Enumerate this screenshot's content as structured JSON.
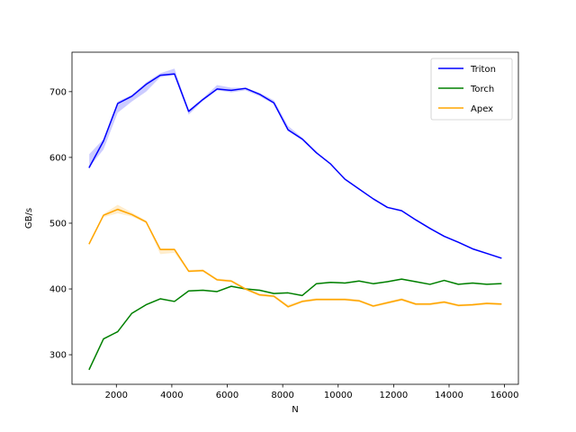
{
  "chart_data": {
    "type": "line",
    "title": "",
    "xlabel": "N",
    "ylabel": "GB/s",
    "xlim": [
      400,
      16500
    ],
    "ylim": [
      255,
      760
    ],
    "xticks": [
      2000,
      4000,
      6000,
      8000,
      10000,
      12000,
      14000,
      16000
    ],
    "yticks": [
      300,
      400,
      500,
      600,
      700
    ],
    "grid": false,
    "legend_position": "top-right",
    "x": [
      1024,
      1536,
      2048,
      2560,
      3072,
      3584,
      4096,
      4608,
      5120,
      5632,
      6144,
      6656,
      7168,
      7680,
      8192,
      8704,
      9216,
      9728,
      10240,
      10752,
      11264,
      11776,
      12288,
      12800,
      13312,
      13824,
      14336,
      14848,
      15360,
      15872
    ],
    "series": [
      {
        "name": "Triton",
        "color": "#0000ff",
        "values": [
          585,
          625,
          682,
          693,
          711,
          725,
          727,
          670,
          688,
          704,
          702,
          705,
          696,
          683,
          642,
          628,
          607,
          590,
          567,
          552,
          537,
          524,
          519,
          505,
          492,
          480,
          471,
          461,
          454,
          447
        ],
        "band_low": [
          585,
          612,
          668,
          685,
          700,
          722,
          725,
          665,
          686,
          702,
          699,
          702,
          693,
          681,
          640,
          626,
          606,
          589,
          566,
          551,
          536,
          523,
          518,
          504,
          491,
          479,
          470,
          460,
          453,
          446
        ],
        "band_high": [
          605,
          628,
          685,
          695,
          714,
          728,
          735,
          672,
          690,
          710,
          706,
          706,
          698,
          687,
          648,
          630,
          609,
          591,
          568,
          553,
          538,
          525,
          520,
          506,
          493,
          481,
          472,
          462,
          455,
          448
        ]
      },
      {
        "name": "Torch",
        "color": "#008000",
        "values": [
          278,
          324,
          335,
          363,
          376,
          385,
          381,
          397,
          398,
          396,
          404,
          400,
          398,
          393,
          394,
          390,
          408,
          410,
          409,
          412,
          408,
          411,
          415,
          411,
          407,
          413,
          407,
          409,
          407,
          408
        ],
        "band_low": [
          277,
          323,
          334,
          362,
          375,
          384,
          380,
          396,
          397,
          395,
          403,
          399,
          397,
          392,
          393,
          389,
          407,
          409,
          408,
          411,
          407,
          410,
          414,
          410,
          406,
          412,
          406,
          408,
          406,
          407
        ],
        "band_high": [
          279,
          325,
          336,
          364,
          377,
          386,
          382,
          398,
          399,
          397,
          405,
          401,
          399,
          394,
          395,
          391,
          409,
          411,
          410,
          413,
          409,
          412,
          416,
          412,
          408,
          414,
          408,
          410,
          408,
          409
        ]
      },
      {
        "name": "Apex",
        "color": "#ffa500",
        "values": [
          469,
          512,
          521,
          513,
          502,
          460,
          460,
          427,
          428,
          414,
          412,
          400,
          391,
          389,
          373,
          381,
          384,
          384,
          384,
          382,
          374,
          379,
          384,
          377,
          377,
          380,
          375,
          376,
          378,
          377
        ],
        "band_low": [
          467,
          509,
          515,
          510,
          500,
          453,
          455,
          425,
          426,
          412,
          410,
          398,
          389,
          387,
          371,
          379,
          382,
          382,
          382,
          380,
          372,
          377,
          382,
          375,
          375,
          378,
          373,
          374,
          376,
          375
        ],
        "band_high": [
          472,
          514,
          528,
          516,
          504,
          462,
          462,
          429,
          430,
          416,
          414,
          402,
          393,
          391,
          376,
          383,
          386,
          386,
          386,
          384,
          376,
          381,
          386,
          379,
          379,
          382,
          377,
          378,
          380,
          379
        ]
      }
    ]
  }
}
